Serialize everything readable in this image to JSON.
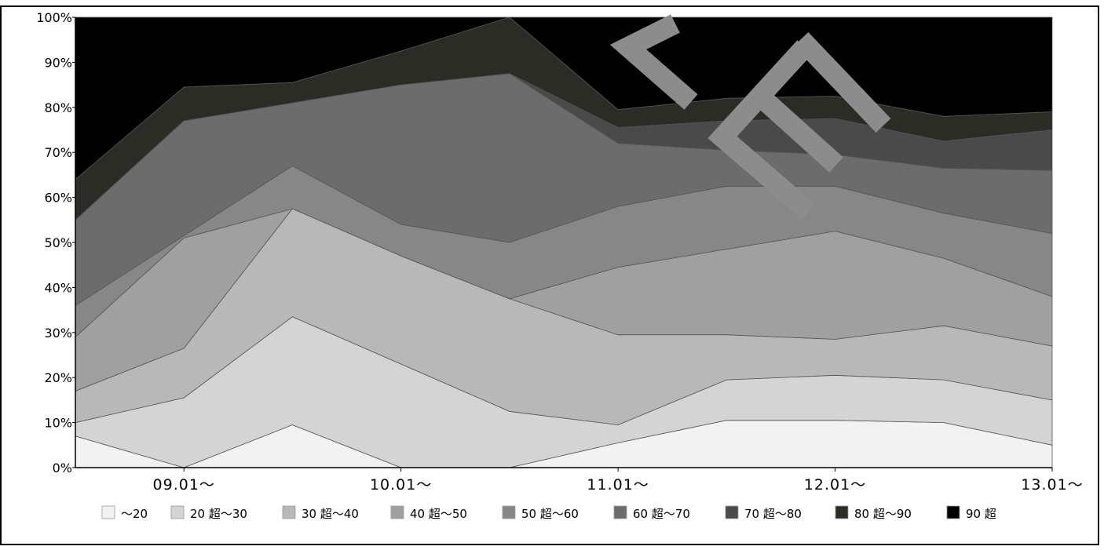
{
  "chart_data": {
    "type": "area",
    "stacked": true,
    "normalized": true,
    "title": "",
    "xlabel": "",
    "ylabel": "",
    "ylim": [
      0,
      100
    ],
    "y_ticks": [
      "0%",
      "10%",
      "20%",
      "30%",
      "40%",
      "50%",
      "60%",
      "70%",
      "80%",
      "90%",
      "100%"
    ],
    "x_tick_labels": [
      "09.01～",
      "10.01～",
      "11.01～",
      "12.01～",
      "13.01～"
    ],
    "x": [
      "08.07",
      "09.01",
      "09.07",
      "10.01",
      "10.07",
      "11.01",
      "11.07",
      "12.01",
      "12.07",
      "13.01"
    ],
    "grid": false,
    "legend_position": "bottom",
    "series": [
      {
        "name": "～20",
        "color": "#f2f2f2",
        "values": [
          7,
          0,
          9.5,
          0,
          0,
          5.5,
          10.5,
          10.5,
          10,
          5
        ]
      },
      {
        "name": "20 超～30",
        "color": "#d4d4d4",
        "values": [
          3,
          15.5,
          24,
          23,
          12.5,
          4,
          9,
          10,
          9.5,
          10
        ]
      },
      {
        "name": "30 超～40",
        "color": "#b8b8b8",
        "values": [
          7,
          11,
          24,
          24,
          25,
          20,
          10,
          8,
          12,
          12
        ]
      },
      {
        "name": "40 超～50",
        "color": "#a0a0a0",
        "values": [
          12,
          24.5,
          0,
          0,
          0,
          15,
          19,
          24,
          15,
          11
        ]
      },
      {
        "name": "50 超～60",
        "color": "#878787",
        "values": [
          7,
          0.5,
          9.5,
          7,
          12.5,
          13.5,
          14,
          10,
          10,
          14
        ]
      },
      {
        "name": "60 超～70",
        "color": "#6c6c6c",
        "values": [
          19,
          25.5,
          14,
          31,
          37.5,
          14,
          8,
          7,
          10,
          14
        ]
      },
      {
        "name": "70 超～80",
        "color": "#4a4a4a",
        "values": [
          0,
          0,
          0,
          0,
          0,
          3.5,
          6.5,
          8,
          6,
          9
        ]
      },
      {
        "name": "80 超～90",
        "color": "#2c2c26",
        "values": [
          9,
          7.5,
          4.5,
          7.5,
          12.5,
          4,
          5,
          5,
          5.5,
          4
        ]
      },
      {
        "name": "90 超",
        "color": "#000000",
        "values": [
          36,
          15.5,
          14.5,
          7.5,
          0,
          20.5,
          18,
          17.5,
          22,
          21
        ]
      }
    ]
  }
}
